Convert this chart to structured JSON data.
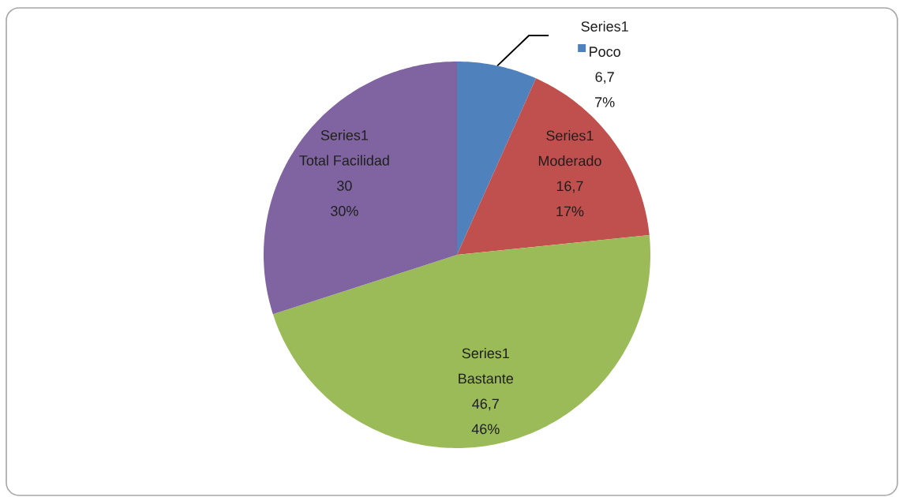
{
  "chart_data": {
    "type": "pie",
    "categories": [
      "Poco",
      "Moderado",
      "Bastante",
      "Total Facilidad"
    ],
    "series": [
      {
        "name": "Series1",
        "values": [
          6.7,
          16.7,
          46.7,
          30
        ],
        "value_labels": [
          "6,7",
          "16,7",
          "46,7",
          "30"
        ]
      }
    ],
    "colors": [
      "#4f81bd",
      "#c0504d",
      "#9bbb59",
      "#8064a2"
    ],
    "annotations": [
      "7%",
      "17%",
      "46%",
      "30%"
    ]
  }
}
